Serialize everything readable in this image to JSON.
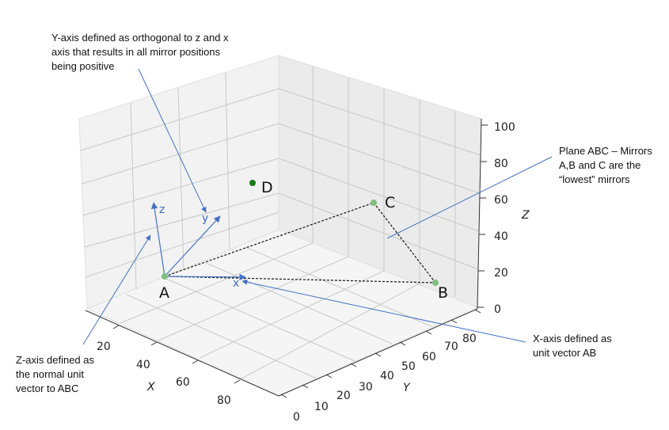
{
  "axes": {
    "x": {
      "label": "X",
      "ticks": [
        "20",
        "40",
        "60",
        "80"
      ]
    },
    "y": {
      "label": "Y",
      "ticks": [
        "0",
        "10",
        "20",
        "30",
        "40",
        "50",
        "60",
        "70",
        "80"
      ]
    },
    "z": {
      "label": "Z",
      "ticks": [
        "0",
        "20",
        "40",
        "60",
        "80",
        "100"
      ]
    }
  },
  "points": {
    "A": "A",
    "B": "B",
    "C": "C",
    "D": "D"
  },
  "vectors": {
    "x": "x",
    "y": "y",
    "z": "z"
  },
  "annotations": {
    "y_axis": [
      "Y-axis defined as orthogonal to z and x",
      "axis that results in all mirror positions",
      "being positive"
    ],
    "plane": [
      "Plane ABC – Mirrors",
      "A,B and C are the",
      "“lowest” mirrors"
    ],
    "z_axis": [
      "Z-axis defined as",
      "the normal unit",
      "vector to ABC"
    ],
    "x_axis": [
      "X-axis defined as",
      "unit vector AB"
    ]
  },
  "colors": {
    "vector": "#4472c4",
    "point_fill": "#7fbf7f",
    "point_d": "#1a7a1a",
    "grid": "#c8c8c8",
    "pane": "#f2f2f2"
  }
}
